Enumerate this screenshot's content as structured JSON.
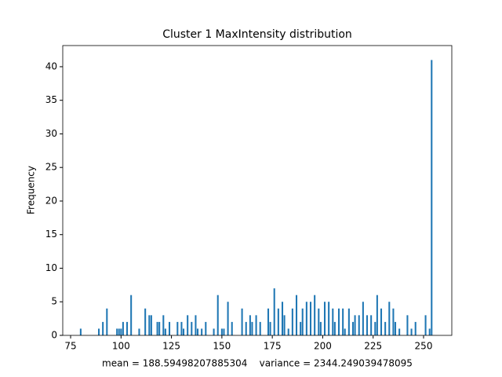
{
  "chart_data": {
    "type": "bar",
    "title": "Cluster 1 MaxIntensity distribution",
    "xlabel": "mean = 188.59498207885304    variance = 2344.249039478095",
    "ylabel": "Frequency",
    "color": "#1f77b4",
    "x": [
      80,
      89,
      91,
      93,
      98,
      99,
      100,
      101,
      103,
      105,
      109,
      112,
      114,
      115,
      118,
      119,
      121,
      122,
      124,
      128,
      130,
      131,
      133,
      135,
      137,
      138,
      140,
      142,
      146,
      148,
      150,
      151,
      153,
      155,
      160,
      162,
      164,
      165,
      167,
      169,
      173,
      174,
      176,
      178,
      180,
      181,
      183,
      185,
      187,
      189,
      190,
      192,
      194,
      196,
      198,
      199,
      201,
      203,
      205,
      206,
      208,
      210,
      211,
      213,
      215,
      216,
      218,
      220,
      222,
      224,
      226,
      227,
      229,
      231,
      233,
      235,
      236,
      238,
      242,
      244,
      246,
      251,
      253,
      254
    ],
    "values": [
      1,
      1,
      2,
      4,
      1,
      1,
      1,
      2,
      2,
      6,
      1,
      4,
      3,
      3,
      2,
      2,
      3,
      1,
      2,
      2,
      2,
      1,
      3,
      2,
      3,
      1,
      1,
      2,
      1,
      6,
      1,
      1,
      5,
      2,
      4,
      2,
      3,
      2,
      3,
      2,
      4,
      2,
      7,
      4,
      5,
      3,
      1,
      4,
      6,
      2,
      4,
      5,
      5,
      6,
      4,
      2,
      5,
      5,
      4,
      2,
      4,
      4,
      1,
      4,
      2,
      3,
      3,
      5,
      3,
      3,
      2,
      6,
      4,
      2,
      5,
      4,
      2,
      1,
      3,
      1,
      2,
      3,
      1,
      41
    ],
    "xlim": [
      71.1,
      264
    ],
    "ylim": [
      0,
      43.15
    ],
    "xticks": [
      75,
      100,
      125,
      150,
      175,
      200,
      225,
      250
    ],
    "yticks": [
      0,
      5,
      10,
      15,
      20,
      25,
      30,
      35,
      40
    ]
  }
}
